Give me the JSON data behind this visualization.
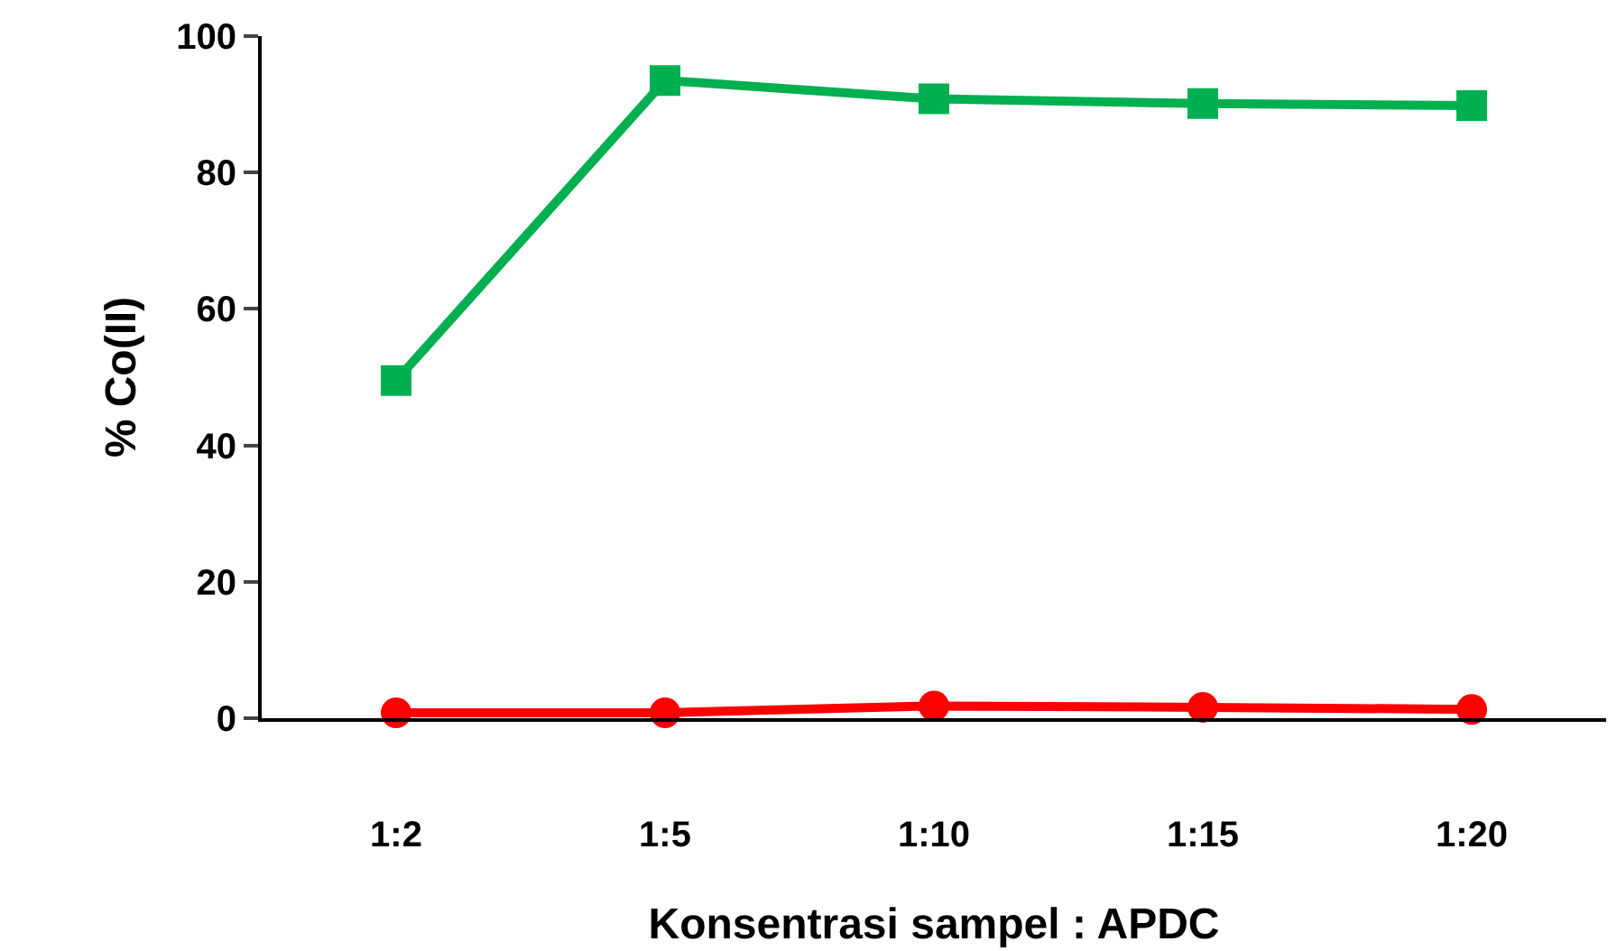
{
  "chart_data": {
    "type": "line",
    "xlabel": "Konsentrasi sampel : APDC",
    "ylabel": "% Co(II)",
    "categories": [
      "1:2",
      "1:5",
      "1:10",
      "1:15",
      "1:20"
    ],
    "series": [
      {
        "color": "#00b050",
        "marker": "square",
        "values": [
          49.5,
          93.5,
          90.8,
          90.1,
          89.8
        ]
      },
      {
        "color": "#ff0000",
        "marker": "circle",
        "values": [
          0.8,
          0.8,
          1.8,
          1.6,
          1.3
        ]
      }
    ],
    "ylim": [
      0,
      100
    ],
    "yticks": [
      0,
      20,
      40,
      60,
      80,
      100
    ],
    "legend": false,
    "line_style": "solid"
  }
}
